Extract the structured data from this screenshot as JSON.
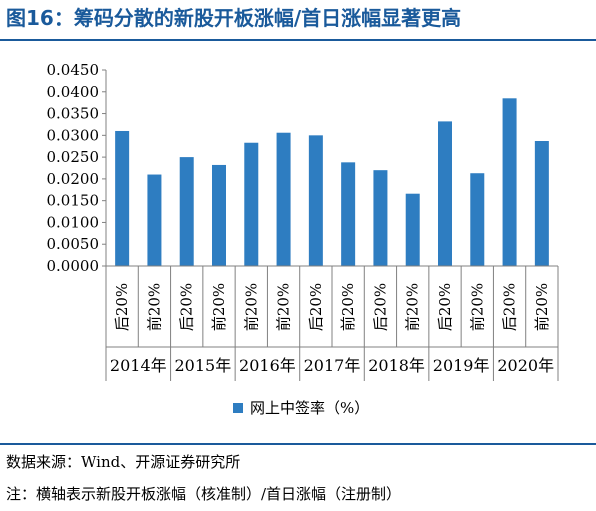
{
  "title": "图16：筹码分散的新股开板涨幅/首日涨幅显著更高",
  "source": "数据来源：Wind、开源证券研究所",
  "note": "注：横轴表示新股开板涨幅（核准制）/首日涨幅（注册制）",
  "colors": {
    "bar": "#2e7dc1",
    "title": "#1a5a9b",
    "axis": "#808080"
  },
  "chart_data": {
    "type": "bar",
    "title": "",
    "xlabel": "",
    "ylabel": "",
    "ylim": [
      0,
      0.045
    ],
    "yticks": [
      "0.0450",
      "0.0400",
      "0.0350",
      "0.0300",
      "0.0250",
      "0.0200",
      "0.0150",
      "0.0100",
      "0.0050",
      "0.0000"
    ],
    "categories": [
      "后20%",
      "前20%",
      "后20%",
      "前20%",
      "前20%",
      "前20%",
      "后20%",
      "前20%",
      "后20%",
      "前20%",
      "后20%",
      "前20%",
      "后20%",
      "前20%"
    ],
    "groups": [
      "2014年",
      "2015年",
      "2016年",
      "2017年",
      "2018年",
      "2019年",
      "2020年"
    ],
    "series": [
      {
        "name": "网上中签率（%）",
        "values": [
          0.031,
          0.021,
          0.025,
          0.0232,
          0.0283,
          0.0306,
          0.03,
          0.0238,
          0.022,
          0.0166,
          0.0332,
          0.0213,
          0.0385,
          0.0287
        ]
      }
    ],
    "legend_position": "bottom",
    "grid": false
  }
}
